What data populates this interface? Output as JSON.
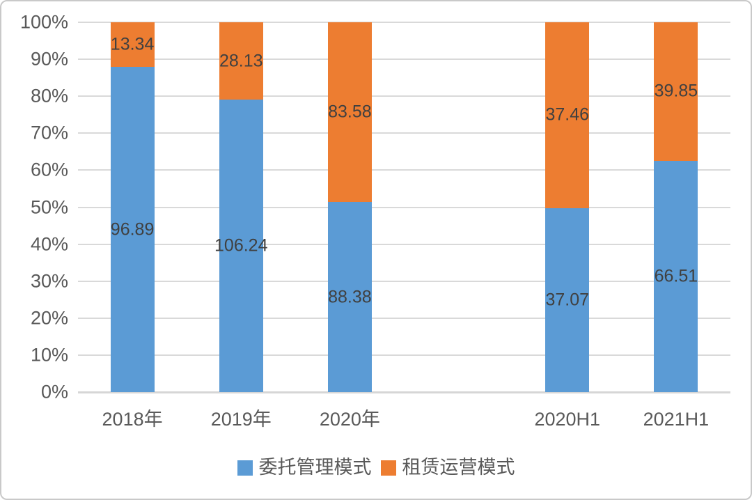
{
  "chart_data": {
    "type": "bar",
    "subtype": "100-percent-stacked-column",
    "title": "",
    "xlabel": "",
    "ylabel": "",
    "categories": [
      "2018年",
      "2019年",
      "2020年",
      "2020H1",
      "2021H1"
    ],
    "series": [
      {
        "name": "委托管理模式",
        "color": "#5B9BD5",
        "values": [
          96.89,
          106.24,
          88.38,
          37.07,
          66.51
        ],
        "labels": [
          "96.89",
          "106.24",
          "88.38",
          "37.07",
          "66.51"
        ]
      },
      {
        "name": "租赁运营模式",
        "color": "#ED7D31",
        "values": [
          13.34,
          28.13,
          83.58,
          37.46,
          39.85
        ],
        "labels": [
          "13.34",
          "28.13",
          "83.58",
          "37.46",
          "39.85"
        ]
      }
    ],
    "y_ticks": [
      "0%",
      "10%",
      "20%",
      "30%",
      "40%",
      "50%",
      "60%",
      "70%",
      "80%",
      "90%",
      "100%"
    ],
    "ylim": [
      0,
      100
    ],
    "grid": true,
    "legend_position": "bottom",
    "slot_count": 6,
    "gap_after_category_index": 2,
    "colors": {
      "gridline": "#d9d9d9",
      "axis_text": "#595959",
      "data_label_text": "#404040",
      "background": "#ffffff",
      "frame_border": "#c9c9c9"
    }
  }
}
